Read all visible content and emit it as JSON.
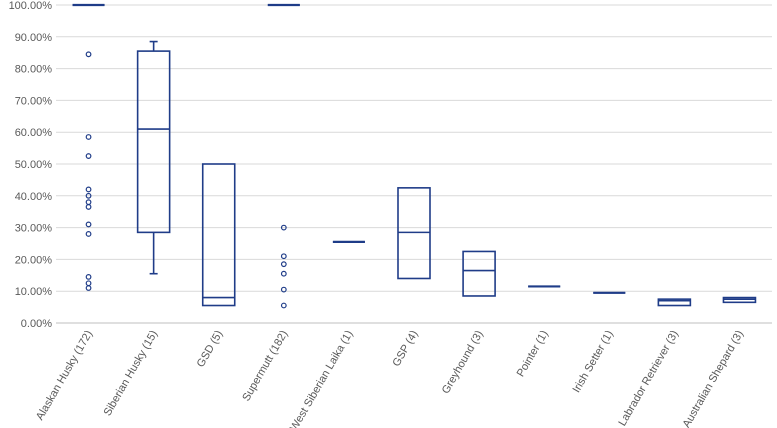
{
  "chart_data": {
    "type": "box",
    "title": "",
    "xlabel": "",
    "ylabel": "",
    "ylim": [
      0,
      100
    ],
    "y_tick_values": [
      0,
      10,
      20,
      30,
      40,
      50,
      60,
      70,
      80,
      90,
      100
    ],
    "y_tick_labels": [
      "0.00%",
      "10.00%",
      "20.00%",
      "30.00%",
      "40.00%",
      "50.00%",
      "60.00%",
      "70.00%",
      "80.00%",
      "90.00%",
      "100.00%"
    ],
    "grid": true,
    "series_color": "#1f3c88",
    "categories": [
      "Alaskan Husky (172)",
      "Siberian Husky (15)",
      "GSD (5)",
      "Supermutt (182)",
      "West Siberian Laika (1)",
      "GSP (4)",
      "Greyhound (3)",
      "Pointer (1)",
      "Irish Setter (1)",
      "Labrador Retriever (3)",
      "Australian Shepard (3)"
    ],
    "boxes": [
      {
        "min": 100,
        "q1": 100,
        "median": 100,
        "q3": 100,
        "max": 100,
        "outliers": [
          84.5,
          58.5,
          52.5,
          42,
          40,
          38,
          36.5,
          31,
          28,
          14.5,
          12.5,
          11
        ]
      },
      {
        "min": 15.5,
        "q1": 28.5,
        "median": 61,
        "q3": 85.5,
        "max": 88.5,
        "outliers": []
      },
      {
        "min": 5.5,
        "q1": 5.5,
        "median": 8,
        "q3": 50,
        "max": 50,
        "outliers": []
      },
      {
        "min": 100,
        "q1": 100,
        "median": 100,
        "q3": 100,
        "max": 100,
        "outliers": [
          30,
          21,
          18.5,
          15.5,
          10.5,
          5.5
        ]
      },
      {
        "min": 25.5,
        "q1": 25.5,
        "median": 25.5,
        "q3": 25.5,
        "max": 25.5,
        "outliers": []
      },
      {
        "min": 14,
        "q1": 14,
        "median": 28.5,
        "q3": 42.5,
        "max": 42.5,
        "outliers": []
      },
      {
        "min": 8.5,
        "q1": 8.5,
        "median": 16.5,
        "q3": 22.5,
        "max": 22.5,
        "outliers": []
      },
      {
        "min": 11.5,
        "q1": 11.5,
        "median": 11.5,
        "q3": 11.5,
        "max": 11.5,
        "outliers": []
      },
      {
        "min": 9.5,
        "q1": 9.5,
        "median": 9.5,
        "q3": 9.5,
        "max": 9.5,
        "outliers": []
      },
      {
        "min": 5.5,
        "q1": 5.5,
        "median": 7,
        "q3": 7.5,
        "max": 7.5,
        "outliers": []
      },
      {
        "min": 6.5,
        "q1": 6.5,
        "median": 7.5,
        "q3": 8,
        "max": 8,
        "outliers": []
      }
    ]
  }
}
